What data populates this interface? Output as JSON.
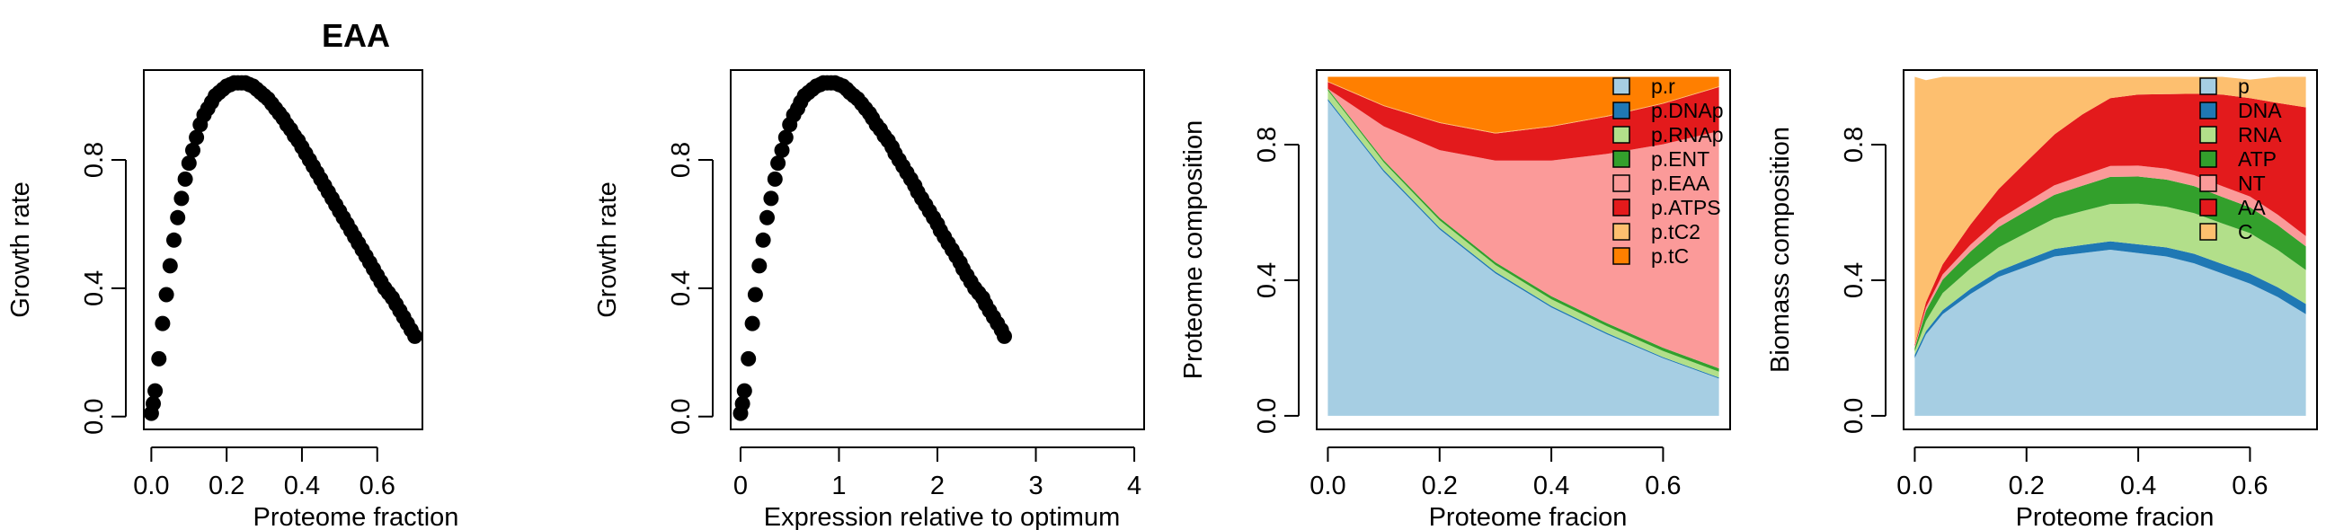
{
  "chart_data": [
    {
      "type": "scatter",
      "title": "EAA",
      "xlabel": "Proteome fraction",
      "ylabel": "Growth rate",
      "xlim": [
        -0.02,
        0.72
      ],
      "ylim": [
        -0.04,
        1.08
      ],
      "xticks": [
        0.0,
        0.2,
        0.4,
        0.6
      ],
      "xtick_labels": [
        "0.0",
        "0.2",
        "0.4",
        "0.6"
      ],
      "yticks": [
        0.0,
        0.4,
        0.8
      ],
      "ytick_labels": [
        "0.0",
        "0.4",
        "0.8"
      ],
      "grid": false,
      "series": [
        {
          "x": [
            0.0,
            0.005,
            0.01,
            0.02,
            0.03,
            0.04,
            0.05,
            0.06,
            0.07,
            0.08,
            0.09,
            0.1,
            0.11,
            0.12,
            0.13,
            0.14,
            0.15,
            0.16,
            0.17,
            0.18,
            0.19,
            0.2,
            0.21,
            0.22,
            0.23,
            0.24,
            0.25,
            0.26,
            0.27,
            0.28,
            0.29,
            0.3,
            0.31,
            0.32,
            0.33,
            0.34,
            0.35,
            0.36,
            0.37,
            0.38,
            0.39,
            0.4,
            0.41,
            0.42,
            0.43,
            0.44,
            0.45,
            0.46,
            0.47,
            0.48,
            0.49,
            0.5,
            0.51,
            0.52,
            0.53,
            0.54,
            0.55,
            0.56,
            0.57,
            0.58,
            0.59,
            0.6,
            0.61,
            0.62,
            0.63,
            0.64,
            0.65,
            0.66,
            0.67,
            0.68,
            0.69,
            0.7
          ],
          "y": [
            0.01,
            0.04,
            0.08,
            0.18,
            0.29,
            0.38,
            0.47,
            0.55,
            0.62,
            0.68,
            0.74,
            0.79,
            0.83,
            0.87,
            0.91,
            0.94,
            0.96,
            0.98,
            1.0,
            1.01,
            1.02,
            1.03,
            1.035,
            1.04,
            1.04,
            1.04,
            1.04,
            1.035,
            1.03,
            1.02,
            1.01,
            1.0,
            0.99,
            0.975,
            0.96,
            0.945,
            0.93,
            0.91,
            0.895,
            0.875,
            0.86,
            0.84,
            0.82,
            0.8,
            0.78,
            0.76,
            0.74,
            0.72,
            0.7,
            0.68,
            0.66,
            0.64,
            0.62,
            0.6,
            0.58,
            0.56,
            0.54,
            0.52,
            0.5,
            0.48,
            0.46,
            0.44,
            0.42,
            0.4,
            0.385,
            0.37,
            0.35,
            0.33,
            0.31,
            0.29,
            0.27,
            0.25
          ]
        }
      ]
    },
    {
      "type": "scatter",
      "title": "",
      "xlabel": "Expression relative to optimum",
      "ylabel": "Growth rate",
      "xlim": [
        -0.1,
        4.1
      ],
      "ylim": [
        -0.04,
        1.08
      ],
      "xticks": [
        0,
        1,
        2,
        3,
        4
      ],
      "xtick_labels": [
        "0",
        "1",
        "2",
        "3",
        "4"
      ],
      "yticks": [
        0.0,
        0.4,
        0.8
      ],
      "ytick_labels": [
        "0.0",
        "0.4",
        "0.8"
      ],
      "grid": false,
      "series": [
        {
          "x": [
            0.0,
            0.02,
            0.04,
            0.08,
            0.12,
            0.15,
            0.19,
            0.23,
            0.27,
            0.31,
            0.35,
            0.38,
            0.42,
            0.46,
            0.5,
            0.54,
            0.58,
            0.61,
            0.65,
            0.69,
            0.73,
            0.77,
            0.81,
            0.84,
            0.88,
            0.92,
            0.96,
            1.0,
            1.04,
            1.08,
            1.11,
            1.15,
            1.19,
            1.23,
            1.27,
            1.31,
            1.34,
            1.38,
            1.42,
            1.46,
            1.5,
            1.54,
            1.57,
            1.61,
            1.65,
            1.69,
            1.73,
            1.77,
            1.8,
            1.84,
            1.88,
            1.92,
            1.96,
            2.0,
            2.03,
            2.07,
            2.11,
            2.15,
            2.19,
            2.23,
            2.26,
            2.3,
            2.34,
            2.38,
            2.42,
            2.46,
            2.49,
            2.53,
            2.57,
            2.61,
            2.65,
            2.68
          ],
          "y": [
            0.01,
            0.04,
            0.08,
            0.18,
            0.29,
            0.38,
            0.47,
            0.55,
            0.62,
            0.68,
            0.74,
            0.79,
            0.83,
            0.87,
            0.91,
            0.94,
            0.96,
            0.98,
            1.0,
            1.01,
            1.02,
            1.03,
            1.035,
            1.04,
            1.04,
            1.04,
            1.04,
            1.035,
            1.03,
            1.02,
            1.01,
            1.0,
            0.99,
            0.975,
            0.96,
            0.945,
            0.93,
            0.91,
            0.895,
            0.875,
            0.86,
            0.84,
            0.82,
            0.8,
            0.78,
            0.76,
            0.74,
            0.72,
            0.7,
            0.68,
            0.66,
            0.64,
            0.62,
            0.6,
            0.58,
            0.56,
            0.54,
            0.52,
            0.5,
            0.48,
            0.46,
            0.44,
            0.42,
            0.4,
            0.385,
            0.37,
            0.35,
            0.33,
            0.31,
            0.29,
            0.27,
            0.25
          ]
        }
      ]
    },
    {
      "type": "area",
      "title": "",
      "xlabel": "Proteome fracion",
      "ylabel": "Proteome composition",
      "xlim": [
        -0.02,
        0.72
      ],
      "ylim": [
        -0.04,
        1.02
      ],
      "xticks": [
        0.0,
        0.2,
        0.4,
        0.6
      ],
      "xtick_labels": [
        "0.0",
        "0.2",
        "0.4",
        "0.6"
      ],
      "yticks": [
        0.0,
        0.4,
        0.8
      ],
      "ytick_labels": [
        "0.0",
        "0.4",
        "0.8"
      ],
      "grid": false,
      "legend_position": "top-right",
      "x": [
        0.0,
        0.1,
        0.2,
        0.3,
        0.4,
        0.5,
        0.6,
        0.7
      ],
      "series": [
        {
          "name": "p.r",
          "color": "#a6cee3",
          "values": [
            0.93,
            0.72,
            0.55,
            0.42,
            0.32,
            0.24,
            0.17,
            0.11
          ]
        },
        {
          "name": "p.DNAp",
          "color": "#1f78b4",
          "values": [
            0.005,
            0.005,
            0.005,
            0.005,
            0.004,
            0.004,
            0.003,
            0.003
          ]
        },
        {
          "name": "p.RNAp",
          "color": "#b2df8a",
          "values": [
            0.025,
            0.023,
            0.022,
            0.02,
            0.02,
            0.02,
            0.018,
            0.017
          ]
        },
        {
          "name": "p.ENT",
          "color": "#33a02c",
          "values": [
            0.005,
            0.006,
            0.007,
            0.008,
            0.009,
            0.009,
            0.01,
            0.01
          ]
        },
        {
          "name": "p.EAA",
          "color": "#fb9a99",
          "values": [
            0.0,
            0.1,
            0.2,
            0.3,
            0.4,
            0.5,
            0.6,
            0.7
          ]
        },
        {
          "name": "p.ATPS",
          "color": "#e31a1c",
          "values": [
            0.02,
            0.06,
            0.08,
            0.08,
            0.1,
            0.11,
            0.12,
            0.13
          ]
        },
        {
          "name": "p.tC2",
          "color": "#fdbf6f",
          "values": [
            0.002,
            0.002,
            0.002,
            0.002,
            0.002,
            0.002,
            0.002,
            0.002
          ]
        },
        {
          "name": "p.tC",
          "color": "#ff7f00",
          "values": [
            0.013,
            0.084,
            0.134,
            0.165,
            0.145,
            0.115,
            0.077,
            0.028
          ]
        }
      ]
    },
    {
      "type": "area",
      "title": "",
      "xlabel": "Proteome fracion",
      "ylabel": "Biomass composition",
      "xlim": [
        -0.02,
        0.72
      ],
      "ylim": [
        -0.04,
        1.02
      ],
      "xticks": [
        0.0,
        0.2,
        0.4,
        0.6
      ],
      "xtick_labels": [
        "0.0",
        "0.2",
        "0.4",
        "0.6"
      ],
      "yticks": [
        0.0,
        0.4,
        0.8
      ],
      "ytick_labels": [
        "0.0",
        "0.4",
        "0.8"
      ],
      "grid": false,
      "legend_position": "top-right",
      "x": [
        0.0,
        0.02,
        0.05,
        0.1,
        0.15,
        0.2,
        0.25,
        0.3,
        0.35,
        0.4,
        0.45,
        0.5,
        0.55,
        0.6,
        0.65,
        0.7
      ],
      "series": [
        {
          "name": "p",
          "color": "#a6cee3",
          "values": [
            0.17,
            0.24,
            0.3,
            0.36,
            0.41,
            0.44,
            0.47,
            0.48,
            0.49,
            0.48,
            0.47,
            0.45,
            0.42,
            0.39,
            0.35,
            0.3
          ]
        },
        {
          "name": "DNA",
          "color": "#1f78b4",
          "values": [
            0.01,
            0.01,
            0.012,
            0.015,
            0.017,
            0.02,
            0.022,
            0.024,
            0.025,
            0.026,
            0.027,
            0.028,
            0.028,
            0.029,
            0.029,
            0.03
          ]
        },
        {
          "name": "RNA",
          "color": "#b2df8a",
          "values": [
            0.01,
            0.03,
            0.05,
            0.06,
            0.07,
            0.08,
            0.09,
            0.1,
            0.11,
            0.12,
            0.12,
            0.12,
            0.12,
            0.12,
            0.11,
            0.1
          ]
        },
        {
          "name": "ATP",
          "color": "#33a02c",
          "values": [
            0.01,
            0.03,
            0.04,
            0.05,
            0.06,
            0.065,
            0.07,
            0.075,
            0.08,
            0.08,
            0.08,
            0.08,
            0.078,
            0.076,
            0.073,
            0.07
          ]
        },
        {
          "name": "NT",
          "color": "#fb9a99",
          "values": [
            0.005,
            0.01,
            0.015,
            0.02,
            0.022,
            0.025,
            0.028,
            0.03,
            0.032,
            0.032,
            0.032,
            0.032,
            0.032,
            0.032,
            0.031,
            0.03
          ]
        },
        {
          "name": "AA",
          "color": "#e31a1c",
          "values": [
            0.005,
            0.015,
            0.03,
            0.06,
            0.09,
            0.12,
            0.15,
            0.18,
            0.2,
            0.21,
            0.22,
            0.24,
            0.27,
            0.29,
            0.33,
            0.38
          ]
        },
        {
          "name": "C",
          "color": "#fdbf6f",
          "values": [
            0.79,
            0.655,
            0.553,
            0.435,
            0.331,
            0.25,
            0.17,
            0.111,
            0.063,
            0.052,
            0.051,
            0.05,
            0.052,
            0.055,
            0.077,
            0.09
          ]
        }
      ]
    }
  ]
}
